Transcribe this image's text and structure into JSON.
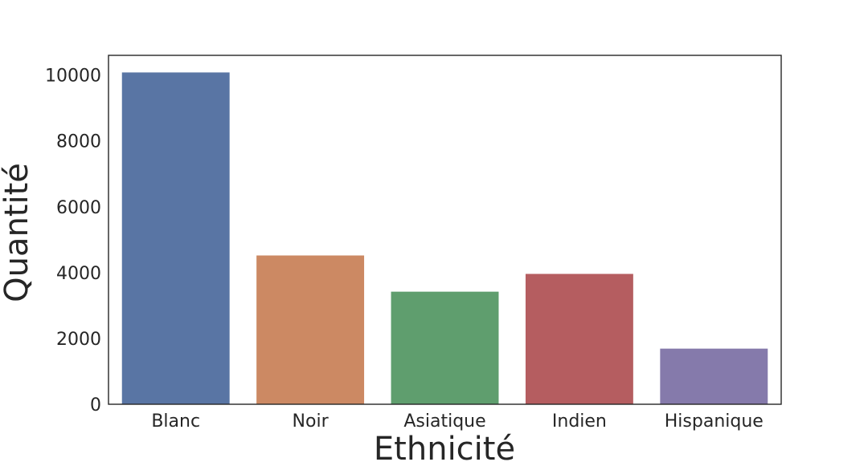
{
  "chart_data": {
    "type": "bar",
    "xlabel": "Ethnicité",
    "ylabel": "Quantité",
    "categories": [
      "Blanc",
      "Noir",
      "Asiatique",
      "Indien",
      "Hispanique"
    ],
    "values": [
      10080,
      4520,
      3420,
      3960,
      1690
    ],
    "colors": [
      "#5975a4",
      "#cc8963",
      "#5f9e6e",
      "#b55d60",
      "#857aab"
    ],
    "ylim": [
      0,
      10600
    ],
    "yticks": [
      0,
      2000,
      4000,
      6000,
      8000,
      10000
    ],
    "grid": false,
    "legend": "none"
  }
}
